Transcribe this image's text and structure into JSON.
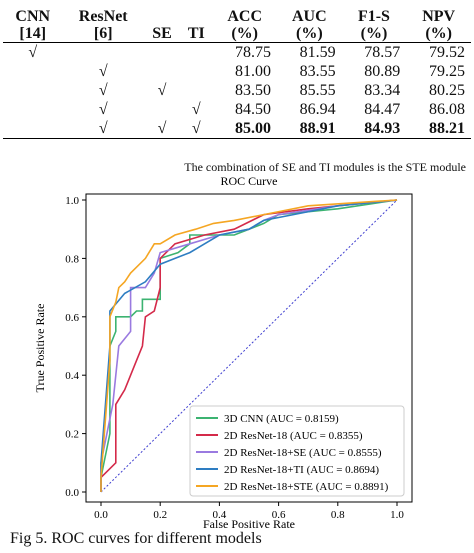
{
  "table": {
    "headers": [
      {
        "top": "CNN",
        "bottom": "[14]"
      },
      {
        "top": "ResNet",
        "bottom": "[6]"
      },
      {
        "top": "SE",
        "bottom": ""
      },
      {
        "top": "TI",
        "bottom": ""
      },
      {
        "top": "ACC",
        "bottom": "(%)"
      },
      {
        "top": "AUC",
        "bottom": "(%)"
      },
      {
        "top": "F1-S",
        "bottom": "(%)"
      },
      {
        "top": "NPV",
        "bottom": "(%)"
      }
    ],
    "rows": [
      {
        "cnn": "√",
        "resnet": "",
        "se": "",
        "ti": "",
        "acc": "78.75",
        "auc": "81.59",
        "f1": "78.57",
        "npv": "79.52"
      },
      {
        "cnn": "",
        "resnet": "√",
        "se": "",
        "ti": "",
        "acc": "81.00",
        "auc": "83.55",
        "f1": "80.89",
        "npv": "79.25"
      },
      {
        "cnn": "",
        "resnet": "√",
        "se": "√",
        "ti": "",
        "acc": "83.50",
        "auc": "85.55",
        "f1": "83.34",
        "npv": "80.25"
      },
      {
        "cnn": "",
        "resnet": "√",
        "se": "",
        "ti": "√",
        "acc": "84.50",
        "auc": "86.94",
        "f1": "84.47",
        "npv": "86.08"
      },
      {
        "cnn": "",
        "resnet": "√",
        "se": "√",
        "ti": "√",
        "acc": "85.00",
        "auc": "88.91",
        "f1": "84.93",
        "npv": "88.21"
      }
    ],
    "note": "The combination of SE and TI modules is the STE module"
  },
  "chart_data": {
    "type": "line",
    "title": "ROC Curve",
    "xlabel": "False Positive Rate",
    "ylabel": "True Positive Rate",
    "xlim": [
      0,
      1
    ],
    "ylim": [
      0,
      1
    ],
    "xticks": [
      "0.0",
      "0.2",
      "0.4",
      "0.6",
      "0.8",
      "1.0"
    ],
    "yticks": [
      "0.0",
      "0.2",
      "0.4",
      "0.6",
      "0.8",
      "1.0"
    ],
    "legend_position": "lower-right",
    "diagonal": {
      "color": "#4040d0",
      "style": "dotted"
    },
    "series": [
      {
        "name": "3D CNN (AUC = 0.8159)",
        "color": "#3cb371",
        "points": [
          [
            0,
            0
          ],
          [
            0,
            0.05
          ],
          [
            0.03,
            0.2
          ],
          [
            0.03,
            0.5
          ],
          [
            0.05,
            0.55
          ],
          [
            0.05,
            0.6
          ],
          [
            0.1,
            0.6
          ],
          [
            0.12,
            0.62
          ],
          [
            0.14,
            0.62
          ],
          [
            0.14,
            0.66
          ],
          [
            0.2,
            0.66
          ],
          [
            0.2,
            0.8
          ],
          [
            0.26,
            0.82
          ],
          [
            0.3,
            0.85
          ],
          [
            0.3,
            0.88
          ],
          [
            0.45,
            0.88
          ],
          [
            0.5,
            0.9
          ],
          [
            0.55,
            0.92
          ],
          [
            0.6,
            0.95
          ],
          [
            0.8,
            0.97
          ],
          [
            1,
            1
          ]
        ]
      },
      {
        "name": "2D ResNet-18 (AUC = 0.8355)",
        "color": "#d42a4a",
        "points": [
          [
            0,
            0
          ],
          [
            0,
            0.05
          ],
          [
            0.05,
            0.1
          ],
          [
            0.05,
            0.3
          ],
          [
            0.08,
            0.35
          ],
          [
            0.1,
            0.4
          ],
          [
            0.12,
            0.45
          ],
          [
            0.14,
            0.5
          ],
          [
            0.15,
            0.6
          ],
          [
            0.18,
            0.62
          ],
          [
            0.2,
            0.7
          ],
          [
            0.2,
            0.8
          ],
          [
            0.25,
            0.85
          ],
          [
            0.35,
            0.88
          ],
          [
            0.45,
            0.9
          ],
          [
            0.55,
            0.95
          ],
          [
            0.7,
            0.97
          ],
          [
            1,
            1
          ]
        ]
      },
      {
        "name": "2D ResNet-18+SE (AUC = 0.8555)",
        "color": "#9a7ae0",
        "points": [
          [
            0,
            0
          ],
          [
            0,
            0.1
          ],
          [
            0.04,
            0.3
          ],
          [
            0.06,
            0.5
          ],
          [
            0.1,
            0.55
          ],
          [
            0.1,
            0.7
          ],
          [
            0.15,
            0.7
          ],
          [
            0.18,
            0.75
          ],
          [
            0.2,
            0.82
          ],
          [
            0.3,
            0.85
          ],
          [
            0.4,
            0.88
          ],
          [
            0.5,
            0.9
          ],
          [
            0.55,
            0.93
          ],
          [
            0.6,
            0.95
          ],
          [
            0.8,
            0.98
          ],
          [
            1,
            1
          ]
        ]
      },
      {
        "name": "2D ResNet-18+TI (AUC = 0.8694)",
        "color": "#2e7dc2",
        "points": [
          [
            0,
            0
          ],
          [
            0,
            0.1
          ],
          [
            0.03,
            0.5
          ],
          [
            0.03,
            0.62
          ],
          [
            0.08,
            0.68
          ],
          [
            0.15,
            0.72
          ],
          [
            0.2,
            0.78
          ],
          [
            0.25,
            0.8
          ],
          [
            0.3,
            0.82
          ],
          [
            0.35,
            0.85
          ],
          [
            0.4,
            0.88
          ],
          [
            0.5,
            0.9
          ],
          [
            0.55,
            0.93
          ],
          [
            0.65,
            0.95
          ],
          [
            0.8,
            0.98
          ],
          [
            1,
            1
          ]
        ]
      },
      {
        "name": "2D ResNet-18+STE (AUC = 0.8891)",
        "color": "#f5a623",
        "points": [
          [
            0,
            0
          ],
          [
            0,
            0.05
          ],
          [
            0.03,
            0.45
          ],
          [
            0.03,
            0.6
          ],
          [
            0.05,
            0.65
          ],
          [
            0.06,
            0.7
          ],
          [
            0.08,
            0.72
          ],
          [
            0.1,
            0.75
          ],
          [
            0.15,
            0.8
          ],
          [
            0.18,
            0.85
          ],
          [
            0.2,
            0.85
          ],
          [
            0.25,
            0.88
          ],
          [
            0.32,
            0.9
          ],
          [
            0.38,
            0.92
          ],
          [
            0.45,
            0.93
          ],
          [
            0.55,
            0.95
          ],
          [
            0.7,
            0.98
          ],
          [
            1,
            1
          ]
        ]
      }
    ]
  },
  "caption": "Fig 5.  ROC curves for different models"
}
